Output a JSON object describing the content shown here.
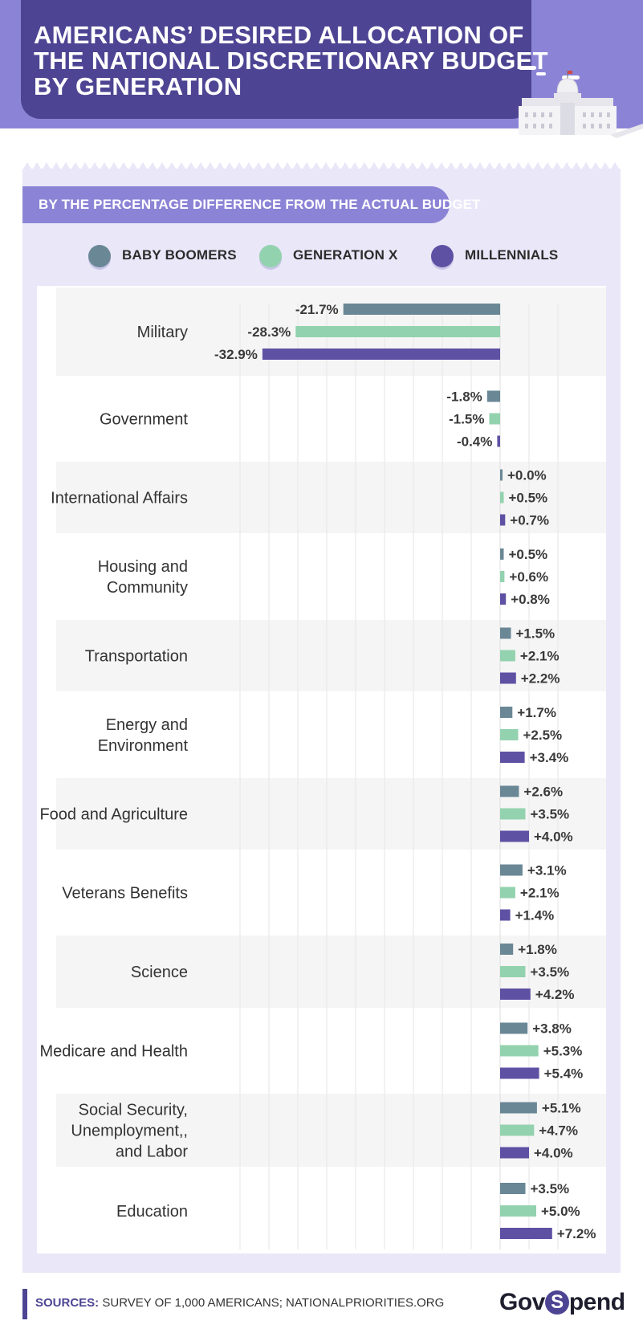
{
  "header": {
    "title_lines": [
      "AMERICANS’ DESIRED ALLOCATION OF",
      "THE NATIONAL DISCRETIONARY BUDGET",
      "BY GENERATION"
    ]
  },
  "subtitle": "BY THE PERCENTAGE DIFFERENCE FROM THE ACTUAL BUDGET",
  "legend": [
    {
      "label": "BABY BOOMERS",
      "color": "#6a8795"
    },
    {
      "label": "GENERATION X",
      "color": "#93d2ae"
    },
    {
      "label": "MILLENNIALS",
      "color": "#5e51a4"
    }
  ],
  "chart_data": {
    "type": "bar",
    "orientation": "horizontal",
    "categories": [
      [
        "Military"
      ],
      [
        "Government"
      ],
      [
        "International Affairs"
      ],
      [
        "Housing and",
        "Community"
      ],
      [
        "Transportation"
      ],
      [
        "Energy and",
        "Environment"
      ],
      [
        "Food and Agriculture"
      ],
      [
        "Veterans Benefits"
      ],
      [
        "Science"
      ],
      [
        "Medicare and Health"
      ],
      [
        "Social Security,",
        "Unemployment,,",
        "and Labor"
      ],
      [
        "Education"
      ]
    ],
    "series": [
      {
        "name": "BABY BOOMERS",
        "color": "#6a8795",
        "values": [
          -21.7,
          -1.8,
          0.0,
          0.5,
          1.5,
          1.7,
          2.6,
          3.1,
          1.8,
          3.8,
          5.1,
          3.5
        ],
        "labels": [
          "-21.7%",
          "-1.8%",
          "+0.0%",
          "+0.5%",
          "+1.5%",
          "+1.7%",
          "+2.6%",
          "+3.1%",
          "+1.8%",
          "+3.8%",
          "+5.1%",
          "+3.5%"
        ]
      },
      {
        "name": "GENERATION X",
        "color": "#93d2ae",
        "values": [
          -28.3,
          -1.5,
          0.5,
          0.6,
          2.1,
          2.5,
          3.5,
          2.1,
          3.5,
          5.3,
          4.7,
          5.0
        ],
        "labels": [
          "-28.3%",
          "-1.5%",
          "+0.5%",
          "+0.6%",
          "+2.1%",
          "+2.5%",
          "+3.5%",
          "+2.1%",
          "+3.5%",
          "+5.3%",
          "+4.7%",
          "+5.0%"
        ]
      },
      {
        "name": "MILLENNIALS",
        "color": "#5e51a4",
        "values": [
          -32.9,
          -0.4,
          0.7,
          0.8,
          2.2,
          3.4,
          4.0,
          1.4,
          4.2,
          5.4,
          4.0,
          7.2
        ],
        "labels": [
          "-32.9%",
          "-0.4%",
          "+0.7%",
          "+0.8%",
          "+2.2%",
          "+3.4%",
          "+4.0%",
          "+1.4%",
          "+4.2%",
          "+5.4%",
          "+4.0%",
          "+7.2%"
        ]
      }
    ],
    "grid": true,
    "legend_position": "top"
  },
  "footer": {
    "sources_label": "SOURCES:",
    "sources_text": "SURVEY OF 1,000 AMERICANS; NATIONALPRIORITIES.ORG",
    "logo_left": "Gov",
    "logo_s": "S",
    "logo_right": "pend"
  }
}
